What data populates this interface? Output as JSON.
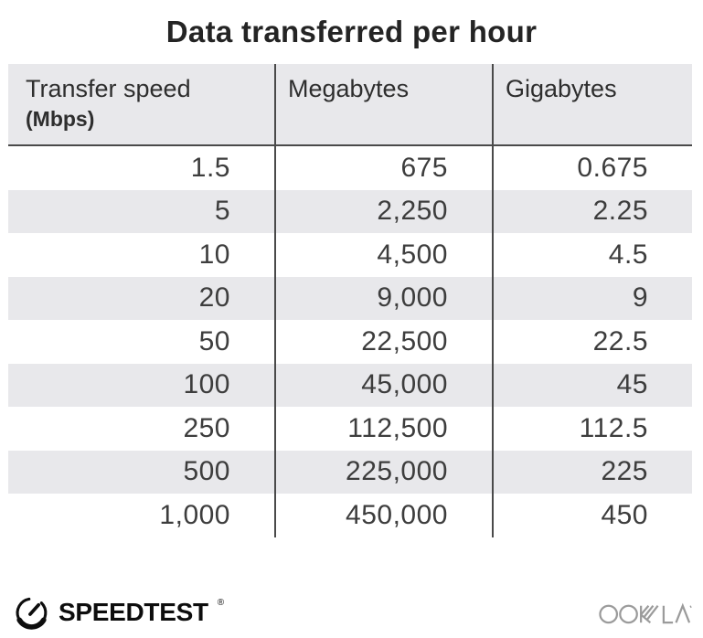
{
  "title": "Data transferred per hour",
  "table": {
    "columns": [
      {
        "label": "Transfer speed",
        "sublabel": "(Mbps)"
      },
      {
        "label": "Megabytes"
      },
      {
        "label": "Gigabytes"
      }
    ],
    "rows": [
      [
        "1.5",
        "675",
        "0.675"
      ],
      [
        "5",
        "2,250",
        "2.25"
      ],
      [
        "10",
        "4,500",
        "4.5"
      ],
      [
        "20",
        "9,000",
        "9"
      ],
      [
        "50",
        "22,500",
        "22.5"
      ],
      [
        "100",
        "45,000",
        "45"
      ],
      [
        "250",
        "112,500",
        "112.5"
      ],
      [
        "500",
        "225,000",
        "225"
      ],
      [
        "1,000",
        "450,000",
        "450"
      ]
    ]
  },
  "footer": {
    "speedtest_label": "SPEEDTEST",
    "registered_mark": "®",
    "ookla_label": "OOKLA"
  },
  "colors": {
    "row_stripe_gray": "#e8e8eb",
    "grid_line": "#4a4a4a",
    "number_text": "#3d3d3d",
    "title_text": "#242424",
    "ookla_gray": "#9b9b9b",
    "speedtest_black": "#0d0d0d"
  },
  "chart_data": {
    "type": "table",
    "title": "Data transferred per hour",
    "columns": [
      "Transfer speed (Mbps)",
      "Megabytes",
      "Gigabytes"
    ],
    "rows": [
      [
        1.5,
        675,
        0.675
      ],
      [
        5,
        2250,
        2.25
      ],
      [
        10,
        4500,
        4.5
      ],
      [
        20,
        9000,
        9
      ],
      [
        50,
        22500,
        22.5
      ],
      [
        100,
        45000,
        45
      ],
      [
        250,
        112500,
        112.5
      ],
      [
        500,
        225000,
        225
      ],
      [
        1000,
        450000,
        450
      ]
    ],
    "layout": {
      "zebra_striping": true,
      "header_background": "#e8e8eb",
      "grid": "column-dividers-only"
    }
  }
}
